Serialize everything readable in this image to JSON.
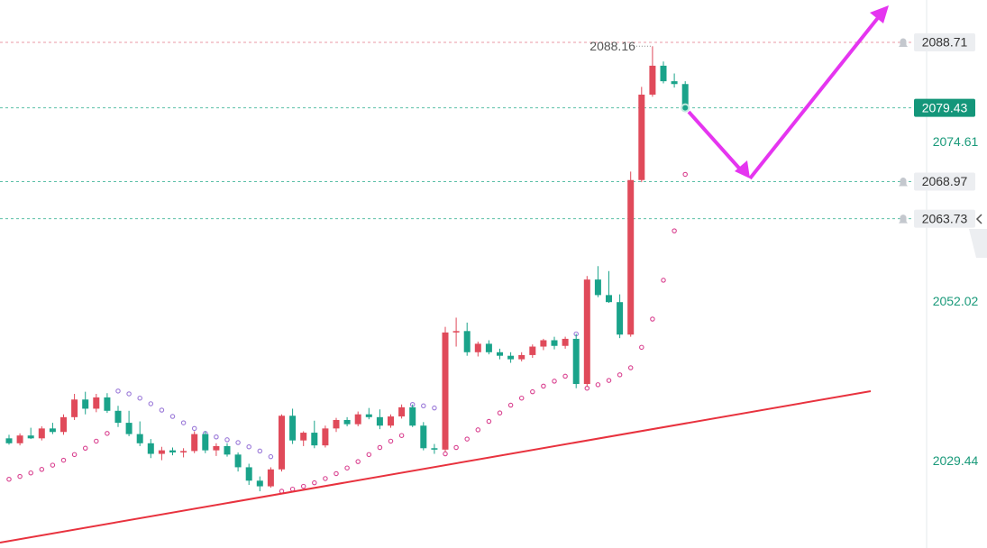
{
  "chart_data": {
    "type": "candlestick",
    "ylim": [
      2017.06,
      2094.71
    ],
    "yticks": [
      2074.61,
      2052.02,
      2029.44
    ],
    "colors": {
      "up": "#e04a5a",
      "down": "#1aa38a",
      "tick": "#1a9a7a"
    },
    "ohlc": [
      [
        2032.6,
        2033.1,
        2031.7,
        2031.9
      ],
      [
        2031.9,
        2033.3,
        2031.6,
        2033.0
      ],
      [
        2033.0,
        2034.1,
        2032.5,
        2032.6
      ],
      [
        2032.6,
        2034.3,
        2032.3,
        2034.0
      ],
      [
        2034.0,
        2034.8,
        2033.2,
        2033.5
      ],
      [
        2033.5,
        2036.0,
        2033.1,
        2035.6
      ],
      [
        2035.6,
        2038.9,
        2035.2,
        2038.1
      ],
      [
        2038.1,
        2039.2,
        2036.0,
        2036.8
      ],
      [
        2036.8,
        2038.9,
        2036.3,
        2038.4
      ],
      [
        2038.4,
        2039.0,
        2036.2,
        2036.5
      ],
      [
        2036.5,
        2037.2,
        2034.2,
        2034.8
      ],
      [
        2034.8,
        2036.5,
        2032.9,
        2033.2
      ],
      [
        2033.2,
        2035.0,
        2031.5,
        2031.9
      ],
      [
        2031.9,
        2032.5,
        2029.8,
        2030.4
      ],
      [
        2030.4,
        2031.4,
        2029.5,
        2030.9
      ],
      [
        2030.9,
        2031.3,
        2030.2,
        2030.6
      ],
      [
        2030.6,
        2031.2,
        2029.9,
        2030.8
      ],
      [
        2030.8,
        2033.6,
        2030.5,
        2033.2
      ],
      [
        2033.2,
        2033.6,
        2030.5,
        2030.9
      ],
      [
        2030.9,
        2031.9,
        2030.1,
        2031.5
      ],
      [
        2031.5,
        2031.9,
        2030.0,
        2030.3
      ],
      [
        2030.3,
        2030.6,
        2027.9,
        2028.5
      ],
      [
        2028.5,
        2029.0,
        2026.0,
        2026.6
      ],
      [
        2026.6,
        2027.2,
        2025.1,
        2025.8
      ],
      [
        2025.8,
        2028.5,
        2025.6,
        2028.2
      ],
      [
        2028.2,
        2036.0,
        2027.9,
        2035.8
      ],
      [
        2035.8,
        2036.8,
        2031.8,
        2032.3
      ],
      [
        2032.3,
        2033.6,
        2031.5,
        2033.4
      ],
      [
        2033.4,
        2035.1,
        2031.2,
        2031.6
      ],
      [
        2031.6,
        2034.4,
        2031.3,
        2034.0
      ],
      [
        2034.0,
        2035.5,
        2033.5,
        2035.2
      ],
      [
        2035.2,
        2035.6,
        2034.3,
        2034.6
      ],
      [
        2034.6,
        2036.4,
        2034.3,
        2036.0
      ],
      [
        2036.0,
        2036.9,
        2035.3,
        2035.6
      ],
      [
        2035.6,
        2036.7,
        2033.9,
        2034.4
      ],
      [
        2034.4,
        2036.0,
        2034.1,
        2035.7
      ],
      [
        2035.7,
        2037.4,
        2035.4,
        2037.0
      ],
      [
        2037.0,
        2037.4,
        2034.2,
        2034.4
      ],
      [
        2034.4,
        2034.9,
        2030.9,
        2031.2
      ],
      [
        2031.2,
        2031.8,
        2030.4,
        2031.0
      ],
      [
        2031.0,
        2048.4,
        2030.7,
        2047.6
      ],
      [
        2047.6,
        2049.7,
        2045.6,
        2047.8
      ],
      [
        2047.8,
        2049.0,
        2044.3,
        2044.8
      ],
      [
        2044.8,
        2046.3,
        2044.2,
        2046.0
      ],
      [
        2046.0,
        2046.5,
        2044.5,
        2044.8
      ],
      [
        2044.8,
        2045.3,
        2043.8,
        2044.3
      ],
      [
        2044.3,
        2044.8,
        2043.3,
        2043.8
      ],
      [
        2043.8,
        2044.8,
        2043.5,
        2044.4
      ],
      [
        2044.4,
        2045.9,
        2044.0,
        2045.6
      ],
      [
        2045.6,
        2046.7,
        2045.1,
        2046.5
      ],
      [
        2046.5,
        2047.0,
        2045.2,
        2045.7
      ],
      [
        2045.7,
        2047.0,
        2045.3,
        2046.7
      ],
      [
        2046.7,
        2047.4,
        2039.7,
        2040.3
      ],
      [
        2040.3,
        2055.6,
        2039.9,
        2055.1
      ],
      [
        2055.1,
        2057.0,
        2052.6,
        2052.9
      ],
      [
        2052.9,
        2056.3,
        2051.8,
        2051.9
      ],
      [
        2051.9,
        2053.0,
        2046.8,
        2047.3
      ],
      [
        2047.3,
        2070.4,
        2047.0,
        2069.2
      ],
      [
        2069.2,
        2082.4,
        2068.9,
        2081.3
      ],
      [
        2081.3,
        2088.16,
        2081.0,
        2085.4
      ],
      [
        2085.4,
        2086.0,
        2082.9,
        2083.2
      ],
      [
        2083.2,
        2084.3,
        2082.3,
        2082.8
      ],
      [
        2082.8,
        2083.2,
        2079.3,
        2079.43
      ]
    ],
    "sar": [
      2026.8,
      2027.2,
      2027.7,
      2028.2,
      2028.8,
      2029.5,
      2030.3,
      2031.2,
      2032.2,
      2033.3,
      2039.3,
      2038.9,
      2038.3,
      2037.5,
      2036.6,
      2035.7,
      2034.8,
      2034.0,
      2033.3,
      2032.8,
      2032.4,
      2032.0,
      2031.4,
      2030.8,
      2030.0,
      2025.1,
      2025.4,
      2025.8,
      2026.3,
      2026.9,
      2027.6,
      2028.4,
      2029.3,
      2030.3,
      2031.3,
      2032.2,
      2033.0,
      2037.4,
      2037.2,
      2036.9,
      2030.4,
      2031.3,
      2032.5,
      2033.8,
      2035.0,
      2036.2,
      2037.3,
      2038.3,
      2039.2,
      2040.0,
      2040.7,
      2041.4,
      2047.4,
      2039.7,
      2040.2,
      2040.8,
      2041.6,
      2042.6,
      2045.5,
      2049.5,
      2055.0,
      2062.0,
      2070.0
    ],
    "sar_colors": {
      "below": "#d9408f",
      "above": "#9a78d8"
    },
    "high_label": 2088.16,
    "price_lines": [
      {
        "value": 2088.71,
        "color": "#e89aa4",
        "alert": true
      },
      {
        "value": 2079.43,
        "color": "#5cc0a8",
        "highlight": true
      },
      {
        "value": 2068.97,
        "color": "#5cc0a8",
        "alert": true
      },
      {
        "value": 2063.73,
        "color": "#5cc0a8",
        "alert": true
      }
    ]
  }
}
